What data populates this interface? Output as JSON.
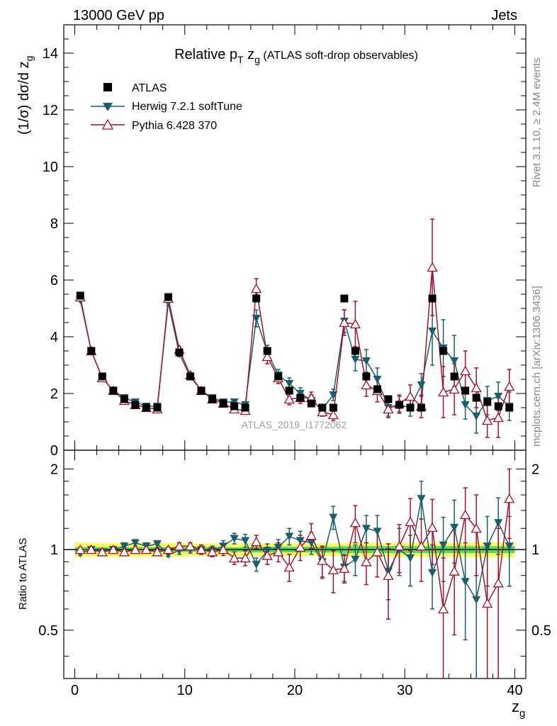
{
  "header": {
    "left": "13000 GeV pp",
    "right": "Jets"
  },
  "side_labels": {
    "rivet": "Rivet 3.1.10, ≥ 2.4M events",
    "mcplots": "mcplots.cern.ch [arXiv:1306.3436]"
  },
  "watermark": "ATLAS_2019_I1772062",
  "chart_data": [
    {
      "id": "main",
      "type": "scatter",
      "title_parts": {
        "pre": "Relative p",
        "sub1": "T",
        "mid": " z",
        "sub2": "g",
        "post": " (ATLAS soft-drop observables)"
      },
      "ylabel_parts": {
        "main": "(1/σ) dσ/d z",
        "sub": "g"
      },
      "xlim": [
        -1,
        41
      ],
      "ylim": [
        0,
        15
      ],
      "yticks": [
        0,
        2,
        4,
        6,
        8,
        10,
        12,
        14
      ],
      "ytick_labels": [
        "0",
        "2",
        "4",
        "6",
        "8",
        "10",
        "12",
        "14"
      ],
      "x": [
        0.5,
        1.5,
        2.5,
        3.5,
        4.5,
        5.5,
        6.5,
        7.5,
        8.5,
        9.5,
        10.5,
        11.5,
        12.5,
        13.5,
        14.5,
        15.5,
        16.5,
        17.5,
        18.5,
        19.5,
        20.5,
        21.5,
        22.5,
        23.5,
        24.5,
        25.5,
        26.5,
        27.5,
        28.5,
        29.5,
        30.5,
        31.5,
        32.5,
        33.5,
        34.5,
        35.5,
        36.5,
        37.5,
        38.5,
        39.5
      ],
      "series": [
        {
          "name": "ATLAS",
          "marker": "square",
          "color": "#000000",
          "values": [
            5.45,
            3.5,
            2.6,
            2.1,
            1.8,
            1.6,
            1.5,
            1.5,
            5.4,
            3.45,
            2.6,
            2.1,
            1.8,
            1.65,
            1.55,
            1.5,
            5.35,
            3.5,
            2.6,
            2.1,
            1.85,
            1.65,
            1.5,
            1.5,
            5.35,
            3.5,
            2.6,
            2.15,
            1.8,
            1.6,
            1.5,
            1.5,
            5.35,
            3.5,
            2.6,
            2.1,
            1.85,
            1.7,
            1.55,
            1.5
          ],
          "errors": [
            0,
            0,
            0,
            0,
            0,
            0,
            0,
            0,
            0,
            0,
            0,
            0,
            0,
            0,
            0,
            0,
            0,
            0,
            0,
            0,
            0,
            0,
            0,
            0,
            0,
            0,
            0,
            0,
            0,
            0,
            0,
            0,
            0,
            0,
            0,
            0,
            0,
            0,
            0,
            0
          ]
        },
        {
          "name": "Herwig 7.2.1 softTune",
          "marker": "triangle-down",
          "color": "#1e5c6b",
          "values": [
            5.3,
            3.5,
            2.55,
            2.1,
            1.85,
            1.7,
            1.55,
            1.55,
            5.2,
            3.4,
            2.6,
            2.1,
            1.85,
            1.7,
            1.7,
            1.6,
            4.65,
            3.45,
            2.65,
            2.35,
            2.0,
            1.75,
            1.45,
            1.95,
            4.55,
            3.2,
            3.15,
            2.5,
            1.5,
            1.6,
            1.5,
            2.3,
            4.2,
            3.6,
            3.15,
            1.6,
            1.2,
            1.75,
            1.9,
            1.55
          ],
          "errors": [
            0.05,
            0.05,
            0.05,
            0.05,
            0.05,
            0.05,
            0.05,
            0.05,
            0.1,
            0.1,
            0.1,
            0.1,
            0.1,
            0.1,
            0.1,
            0.1,
            0.3,
            0.25,
            0.2,
            0.2,
            0.2,
            0.2,
            0.15,
            0.2,
            0.4,
            0.4,
            0.4,
            0.4,
            0.3,
            0.3,
            0.3,
            0.4,
            1.2,
            1.0,
            0.9,
            0.5,
            0.6,
            0.5,
            0.5,
            0.5
          ]
        },
        {
          "name": "Pythia 6.428 370",
          "marker": "triangle-up-open",
          "color": "#a0142d",
          "values": [
            5.4,
            3.5,
            2.55,
            2.1,
            1.75,
            1.6,
            1.5,
            1.45,
            5.35,
            3.55,
            2.65,
            2.1,
            1.8,
            1.65,
            1.45,
            1.4,
            5.7,
            3.3,
            2.55,
            1.8,
            1.85,
            1.85,
            1.35,
            1.25,
            4.5,
            4.45,
            2.3,
            2.1,
            1.45,
            1.65,
            1.9,
            1.55,
            6.45,
            2.05,
            2.15,
            2.8,
            2.2,
            1.05,
            1.15,
            2.25
          ],
          "errors": [
            0.05,
            0.05,
            0.05,
            0.05,
            0.05,
            0.05,
            0.05,
            0.05,
            0.1,
            0.1,
            0.1,
            0.1,
            0.1,
            0.1,
            0.1,
            0.1,
            0.35,
            0.25,
            0.2,
            0.2,
            0.2,
            0.2,
            0.15,
            0.2,
            0.45,
            0.8,
            0.4,
            0.4,
            0.3,
            0.3,
            0.4,
            0.4,
            1.7,
            0.9,
            0.9,
            0.7,
            0.7,
            0.6,
            0.7,
            0.6
          ]
        }
      ]
    },
    {
      "id": "ratio",
      "type": "scatter",
      "ylabel": "Ratio to ATLAS",
      "xlabel_parts": {
        "main": "z",
        "sub": "g"
      },
      "xlim": [
        -1,
        41
      ],
      "ylim": [
        0.33,
        2.35
      ],
      "xticks": [
        0,
        10,
        20,
        30,
        40
      ],
      "xtick_labels": [
        "0",
        "10",
        "20",
        "30",
        "40"
      ],
      "yticks": [
        0.5,
        1,
        2
      ],
      "ytick_labels": [
        "0.5",
        "1",
        "2"
      ],
      "reference_line": 1,
      "band_colors": {
        "stat": "#5ed65e",
        "total": "#fafa6e"
      },
      "band_inner": [
        0.02,
        0.02,
        0.02,
        0.02,
        0.02,
        0.02,
        0.02,
        0.02,
        0.02,
        0.02,
        0.02,
        0.02,
        0.02,
        0.02,
        0.02,
        0.02,
        0.025,
        0.025,
        0.025,
        0.025,
        0.025,
        0.025,
        0.025,
        0.025,
        0.03,
        0.03,
        0.03,
        0.03,
        0.03,
        0.03,
        0.03,
        0.03,
        0.03,
        0.03,
        0.03,
        0.03,
        0.03,
        0.03,
        0.03,
        0.03
      ],
      "band_outer": [
        0.065,
        0.06,
        0.06,
        0.06,
        0.06,
        0.06,
        0.06,
        0.06,
        0.06,
        0.06,
        0.055,
        0.055,
        0.055,
        0.055,
        0.055,
        0.055,
        0.055,
        0.055,
        0.055,
        0.055,
        0.055,
        0.055,
        0.055,
        0.055,
        0.06,
        0.06,
        0.06,
        0.06,
        0.06,
        0.06,
        0.06,
        0.06,
        0.06,
        0.06,
        0.06,
        0.06,
        0.065,
        0.065,
        0.065,
        0.065
      ],
      "series": [
        {
          "name": "Herwig 7.2.1 softTune",
          "marker": "triangle-down",
          "color": "#1e5c6b",
          "values": [
            0.97,
            1.0,
            0.98,
            1.0,
            1.03,
            1.06,
            1.03,
            1.05,
            0.96,
            0.99,
            1.0,
            1.0,
            0.99,
            1.03,
            1.1,
            1.08,
            0.88,
            0.99,
            1.02,
            1.12,
            1.08,
            1.06,
            0.9,
            1.32,
            0.86,
            0.92,
            1.2,
            1.17,
            0.83,
            1.0,
            0.93,
            1.55,
            0.82,
            1.04,
            1.21,
            0.76,
            0.65,
            1.03,
            1.26,
            1.03
          ],
          "errors": [
            0.02,
            0.02,
            0.02,
            0.02,
            0.03,
            0.03,
            0.03,
            0.03,
            0.02,
            0.03,
            0.03,
            0.04,
            0.04,
            0.05,
            0.05,
            0.06,
            0.05,
            0.06,
            0.07,
            0.08,
            0.09,
            0.1,
            0.12,
            0.13,
            0.1,
            0.12,
            0.14,
            0.17,
            0.18,
            0.2,
            0.2,
            0.25,
            0.22,
            0.28,
            0.32,
            0.3,
            0.35,
            0.3,
            0.3,
            0.3
          ]
        },
        {
          "name": "Pythia 6.428 370",
          "marker": "triangle-up-open",
          "color": "#a0142d",
          "values": [
            1.0,
            1.0,
            0.98,
            1.0,
            0.98,
            1.0,
            1.0,
            0.98,
            1.0,
            1.03,
            1.03,
            1.0,
            0.98,
            1.0,
            0.93,
            0.93,
            1.07,
            0.95,
            0.98,
            0.86,
            1.02,
            1.13,
            0.91,
            0.84,
            0.85,
            1.26,
            0.9,
            0.98,
            0.8,
            1.03,
            1.27,
            1.03,
            1.21,
            0.6,
            0.83,
            1.35,
            1.2,
            0.63,
            0.75,
            1.55
          ],
          "errors": [
            0.02,
            0.02,
            0.02,
            0.02,
            0.03,
            0.03,
            0.03,
            0.03,
            0.02,
            0.03,
            0.03,
            0.04,
            0.04,
            0.05,
            0.05,
            0.06,
            0.06,
            0.07,
            0.08,
            0.1,
            0.11,
            0.12,
            0.12,
            0.15,
            0.1,
            0.2,
            0.16,
            0.19,
            0.25,
            0.21,
            0.28,
            0.27,
            0.33,
            0.33,
            0.35,
            0.35,
            0.4,
            0.38,
            0.45,
            0.45
          ]
        }
      ]
    }
  ]
}
